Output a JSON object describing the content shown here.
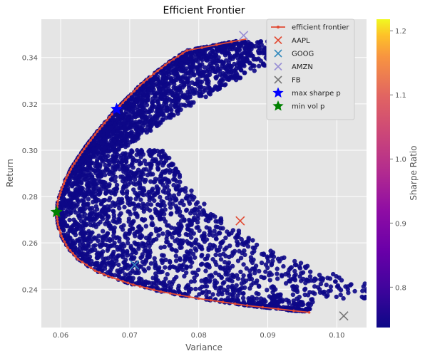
{
  "chart_data": {
    "type": "scatter",
    "title": "Efficient Frontier",
    "xlabel": "Variance",
    "ylabel": "Return",
    "xlim": [
      0.0572,
      0.1043
    ],
    "ylim": [
      0.2235,
      0.3565
    ],
    "x_ticks": [
      0.06,
      0.07,
      0.08,
      0.09,
      0.1
    ],
    "x_tick_labels": [
      "0.06",
      "0.07",
      "0.08",
      "0.09",
      "0.10"
    ],
    "y_ticks": [
      0.24,
      0.26,
      0.28,
      0.3,
      0.32,
      0.34
    ],
    "y_tick_labels": [
      "0.24",
      "0.26",
      "0.28",
      "0.30",
      "0.32",
      "0.34"
    ],
    "grid": true,
    "legend_position": "top-right",
    "colorbar": {
      "label": "Sharpe Ratio",
      "range": [
        0.737,
        1.218
      ],
      "ticks": [
        0.8,
        0.9,
        1.0,
        1.1,
        1.2
      ],
      "tick_labels": [
        "0.8",
        "0.9",
        "1.0",
        "1.1",
        "1.2"
      ],
      "colormap": "plasma"
    },
    "efficient_frontier": {
      "name": "efficient frontier",
      "color": "#e24a33",
      "upper_return": [
        0.273,
        0.278,
        0.283,
        0.288,
        0.293,
        0.298,
        0.303,
        0.308,
        0.313,
        0.318,
        0.323,
        0.328,
        0.333,
        0.338,
        0.343,
        0.348
      ],
      "upper_variance": [
        0.0594,
        0.0596,
        0.0601,
        0.0608,
        0.0617,
        0.0628,
        0.064,
        0.0653,
        0.0667,
        0.0682,
        0.0698,
        0.0715,
        0.0735,
        0.0757,
        0.0783,
        0.0869
      ],
      "lower_return": [
        0.273,
        0.268,
        0.263,
        0.258,
        0.253,
        0.248,
        0.245,
        0.242,
        0.239,
        0.236,
        0.233,
        0.23
      ],
      "lower_variance": [
        0.0594,
        0.0596,
        0.0601,
        0.061,
        0.0625,
        0.065,
        0.0675,
        0.0705,
        0.0745,
        0.08,
        0.087,
        0.096
      ]
    },
    "random_portfolios": {
      "count": 4000,
      "colormap": "plasma"
    },
    "assets": [
      {
        "name": "AAPL",
        "variance": 0.086,
        "return": 0.2695,
        "color": "#e24a33"
      },
      {
        "name": "GOOG",
        "variance": 0.0707,
        "return": 0.2505,
        "color": "#348abd"
      },
      {
        "name": "AMZN",
        "variance": 0.0865,
        "return": 0.3495,
        "color": "#988ed5"
      },
      {
        "name": "FB",
        "variance": 0.101,
        "return": 0.2285,
        "color": "#777777"
      }
    ],
    "max_sharpe": {
      "name": "max sharpe p",
      "variance": 0.0681,
      "return": 0.3177,
      "color": "#0000ff"
    },
    "min_vol": {
      "name": "min vol p",
      "variance": 0.0594,
      "return": 0.2733,
      "color": "#008000"
    },
    "legend": [
      "efficient frontier",
      "AAPL",
      "GOOG",
      "AMZN",
      "FB",
      "max sharpe p",
      "min vol p"
    ]
  }
}
